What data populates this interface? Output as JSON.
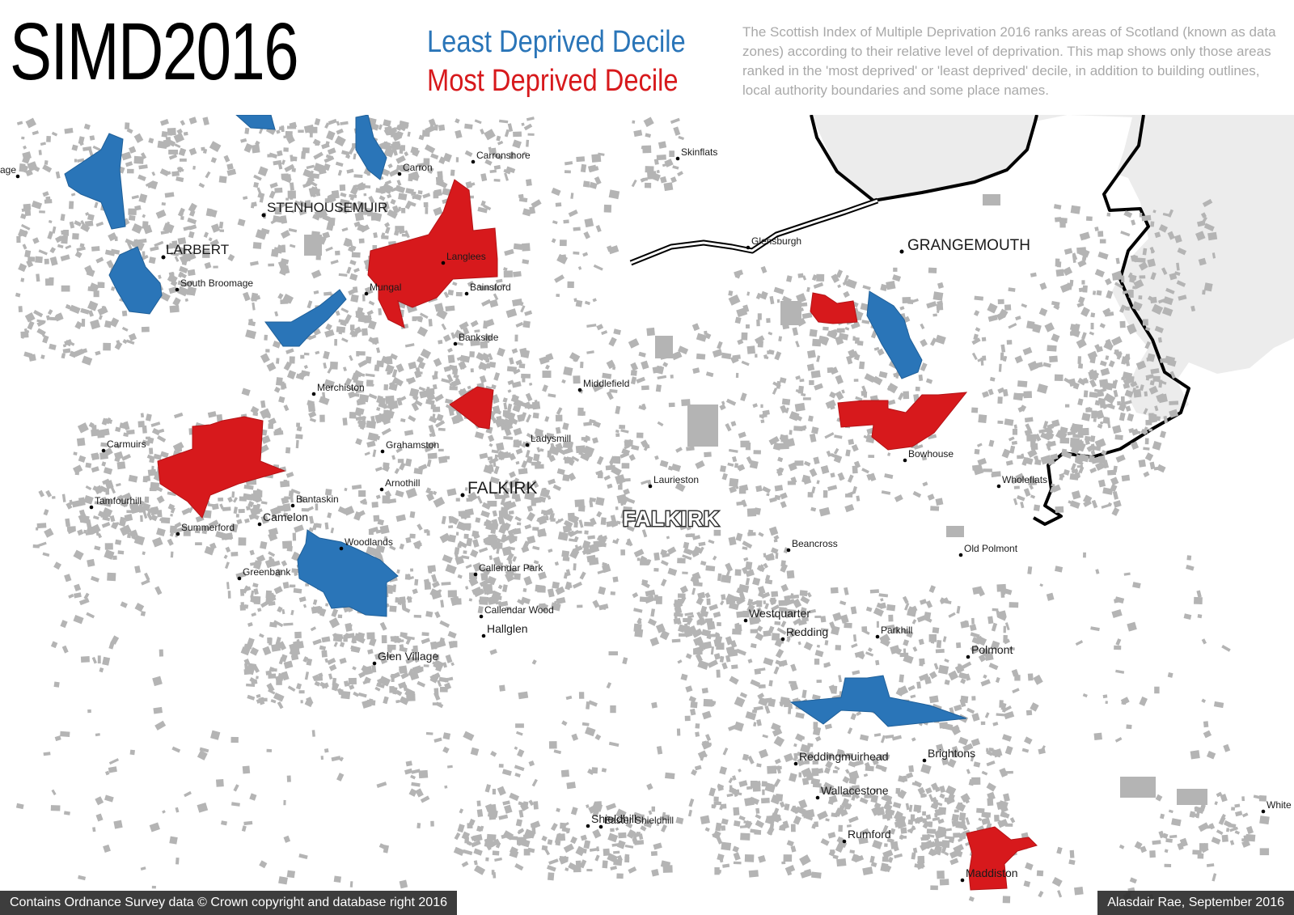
{
  "title": "SIMD2016",
  "legend": {
    "least_label": "Least Deprived Decile",
    "most_label": "Most  Deprived Decile",
    "least_color": "#2a75b8",
    "most_color": "#d7191c"
  },
  "description": "The Scottish Index of Multiple Deprivation 2016 ranks areas of Scotland (known as data zones) according to their relative level of deprivation. This map shows only those areas ranked in the 'most deprived' or 'least deprived' decile, in addition to building outlines, local authority boundaries and some place names.",
  "map": {
    "building_color": "#b4b4b4",
    "water_color": "#ececec",
    "boundary_color": "#000000",
    "authority_label": "FALKIRK",
    "major_places": [
      "STENHOUSEMUIR",
      "LARBERT",
      "GRANGEMOUTH",
      "FALKIRK"
    ],
    "places": [
      "age",
      "Skinflats",
      "Carronshore",
      "Carron",
      "Glensburgh",
      "Langlees",
      "South Broomage",
      "Mungal",
      "Bainsford",
      "Bankside",
      "Merchiston",
      "Middlefield",
      "Carmuirs",
      "Grahamston",
      "Ladysmill",
      "Laurieston",
      "Bowhouse",
      "Tamfourhill",
      "Bantaskin",
      "Arnothill",
      "Wholeflats",
      "Summerford",
      "Camelon",
      "Woodlands",
      "Beancross",
      "Old Polmont",
      "Greenbank",
      "Callendar Park",
      "Callendar Wood",
      "Hallglen",
      "Westquarter",
      "Redding",
      "Parkhill",
      "Polmont",
      "Glen Village",
      "Reddingmuirhead",
      "Brightons",
      "Wallacestone",
      "Shieldhill",
      "Easter Shieldhill",
      "Rumford",
      "Maddiston",
      "White"
    ]
  },
  "footer": {
    "left": "Contains Ordnance Survey data © Crown copyright and database right 2016",
    "right": "Alasdair Rae, September 2016"
  }
}
